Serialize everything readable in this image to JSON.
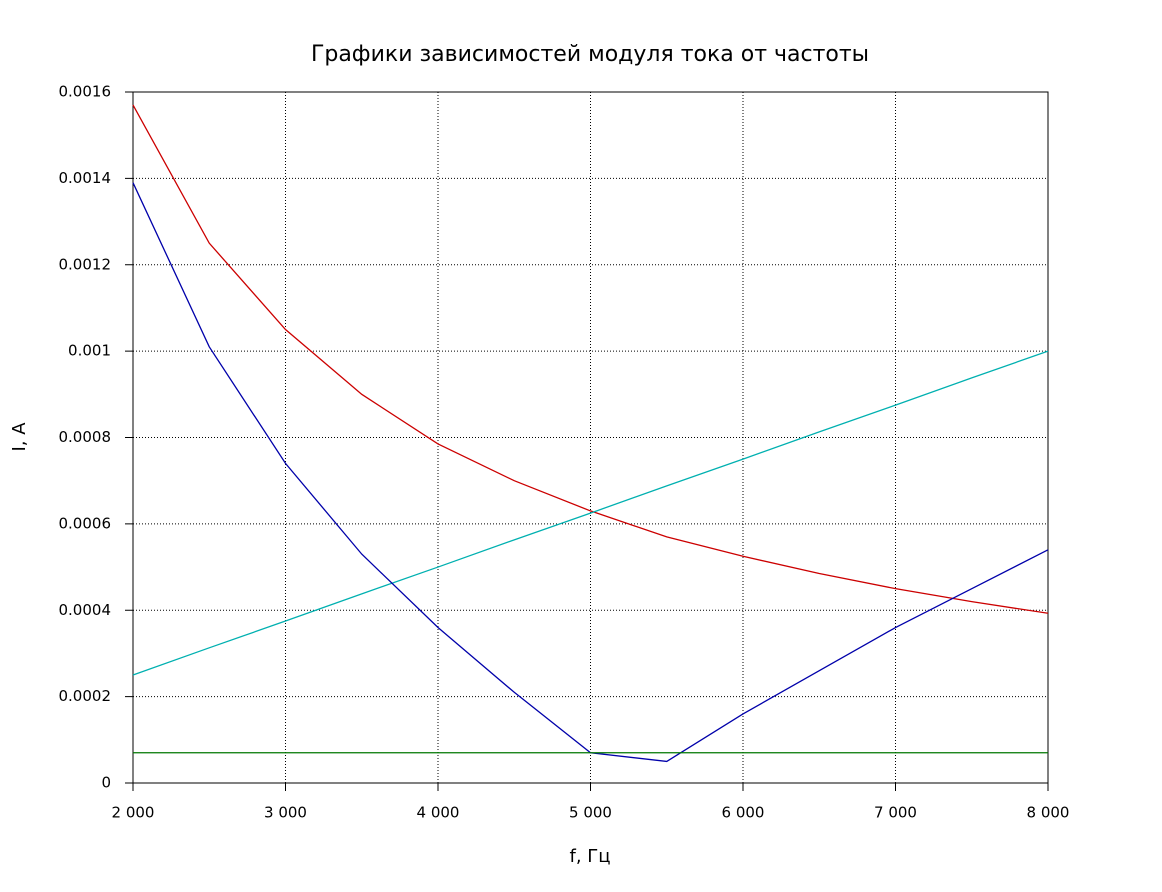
{
  "chart_data": {
    "type": "line",
    "title": "Графики зависимостей модуля тока от частоты",
    "x_label": "f, Гц",
    "y_label": "I, A",
    "x": [
      2000,
      2500,
      3000,
      3500,
      4000,
      4500,
      5000,
      5500,
      6000,
      6500,
      7000,
      7500,
      8000
    ],
    "series": [
      {
        "color": "#cc0000",
        "values": [
          0.00157,
          0.00125,
          0.00105,
          0.0009,
          0.000785,
          0.0007,
          0.00063,
          0.00057,
          0.000525,
          0.000485,
          0.00045,
          0.00042,
          0.000393
        ]
      },
      {
        "color": "#00b0b0",
        "values": [
          0.00025,
          0.000313,
          0.000375,
          0.000438,
          0.0005,
          0.000563,
          0.000625,
          0.000688,
          0.00075,
          0.000813,
          0.000875,
          0.000938,
          0.001
        ]
      },
      {
        "color": "#0000aa",
        "values": [
          0.00139,
          0.00101,
          0.00074,
          0.00053,
          0.00036,
          0.00021,
          7e-05,
          5e-05,
          0.00016,
          0.00026,
          0.00036,
          0.00045,
          0.00054
        ]
      },
      {
        "color": "#007700",
        "values": [
          7e-05,
          7e-05,
          7e-05,
          7e-05,
          7e-05,
          7e-05,
          7e-05,
          7e-05,
          7e-05,
          7e-05,
          7e-05,
          7e-05,
          7e-05
        ]
      }
    ],
    "xlim": [
      2000,
      8000
    ],
    "xticks": [
      {
        "value": 2000,
        "label": "2 000"
      },
      {
        "value": 3000,
        "label": "3 000"
      },
      {
        "value": 4000,
        "label": "4 000"
      },
      {
        "value": 5000,
        "label": "5 000"
      },
      {
        "value": 6000,
        "label": "6 000"
      },
      {
        "value": 7000,
        "label": "7 000"
      },
      {
        "value": 8000,
        "label": "8 000"
      }
    ],
    "ylim": [
      0,
      0.0016
    ],
    "yticks": [
      0,
      0.0002,
      0.0004,
      0.0006,
      0.0008,
      0.001,
      0.0012,
      0.0014,
      0.0016
    ],
    "grid": true
  }
}
